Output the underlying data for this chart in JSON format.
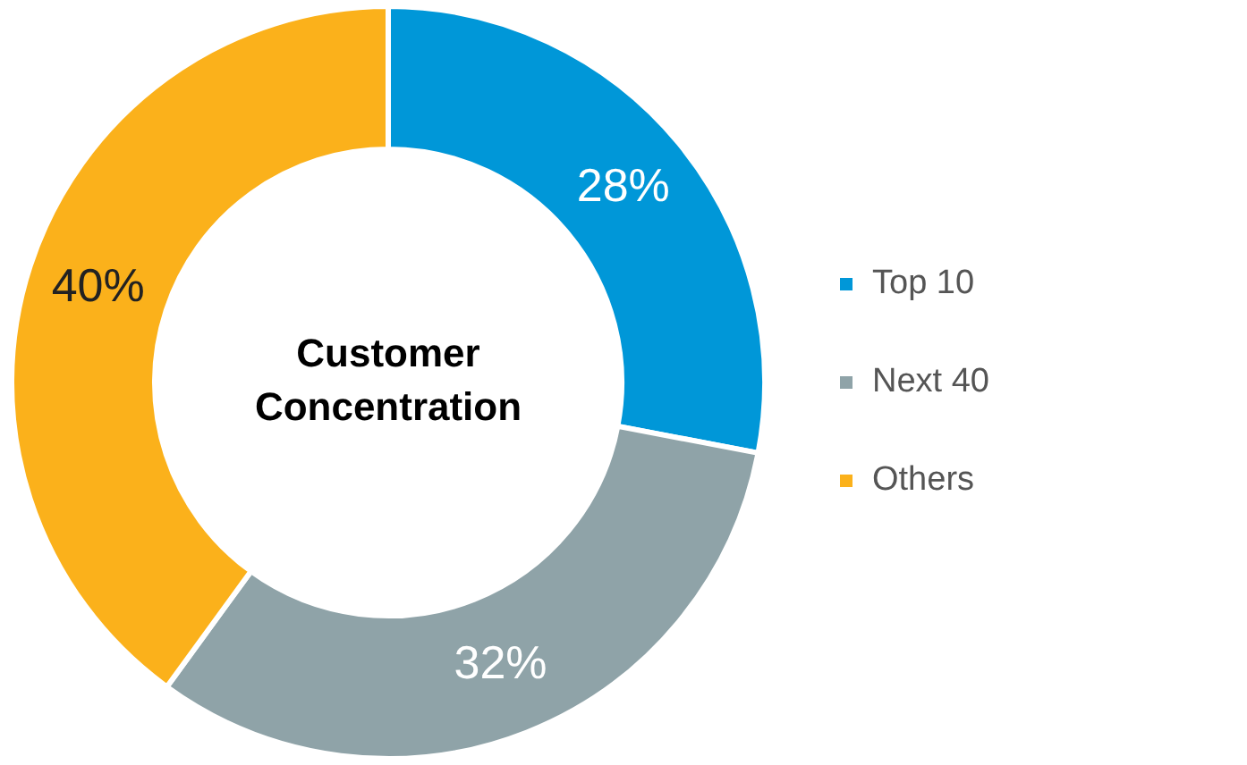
{
  "chart_data": {
    "type": "donut",
    "title": "Customer Concentration",
    "categories": [
      "Top 10",
      "Next 40",
      "Others"
    ],
    "values": [
      28,
      32,
      40
    ],
    "colors": [
      "#0097d8",
      "#8fa3a8",
      "#fbb11b"
    ],
    "value_labels": [
      "28%",
      "32%",
      "40%"
    ],
    "legend": "right"
  }
}
